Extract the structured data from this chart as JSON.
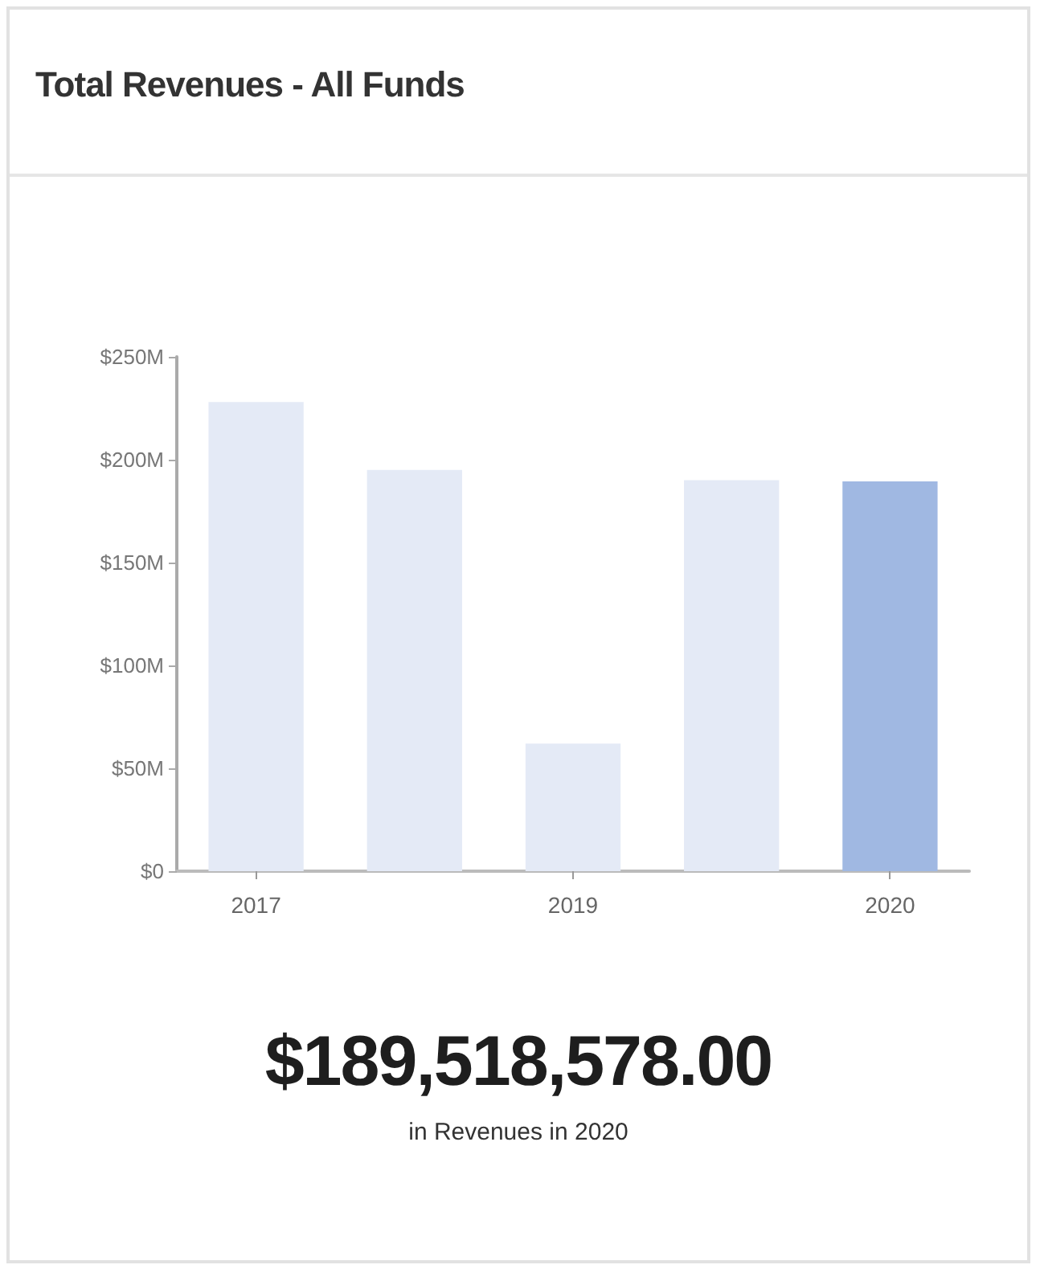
{
  "chart_data": {
    "type": "bar",
    "title": "Total Revenues - All Funds",
    "categories": [
      "2017",
      null,
      "2019",
      null,
      "2020"
    ],
    "values": [
      228,
      195,
      62,
      190,
      189.5
    ],
    "colors": [
      "#e4eaf6",
      "#e4eaf6",
      "#e4eaf6",
      "#e4eaf6",
      "#a0b8e2"
    ],
    "ylim": [
      0,
      250
    ],
    "yticks": [
      {
        "value": 0,
        "label": "$0"
      },
      {
        "value": 50,
        "label": "$50M"
      },
      {
        "value": 100,
        "label": "$100M"
      },
      {
        "value": 150,
        "label": "$150M"
      },
      {
        "value": 200,
        "label": "$200M"
      },
      {
        "value": 250,
        "label": "$250M"
      }
    ],
    "grid": false,
    "annotations": [
      "$189,518,578.00",
      "in Revenues in 2020"
    ]
  }
}
